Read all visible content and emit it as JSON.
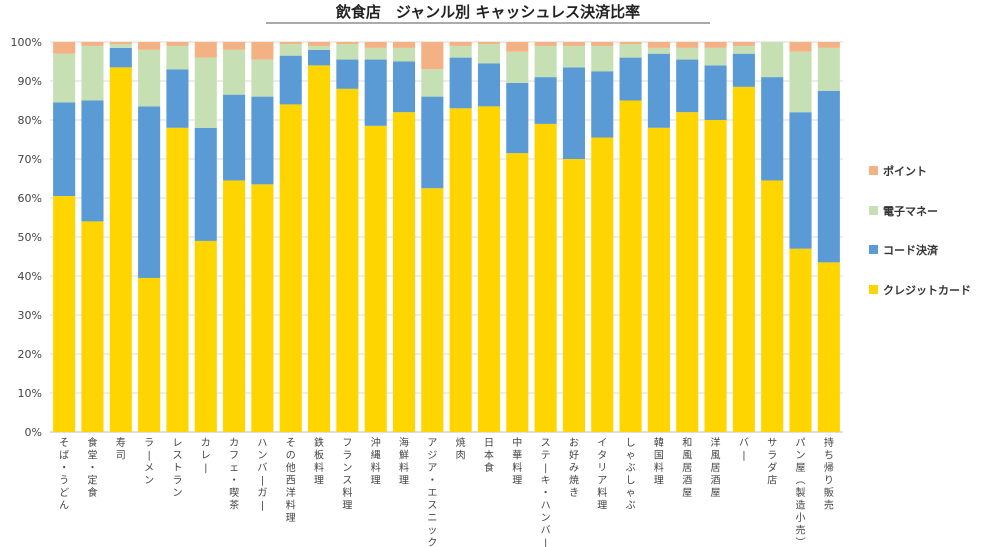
{
  "chart_data": {
    "type": "bar",
    "stacked": true,
    "title": "飲食店　ジャンル別 キャッシュレス決済比率",
    "ylim": [
      0,
      100
    ],
    "yticks": [
      "0%",
      "10%",
      "20%",
      "30%",
      "40%",
      "50%",
      "60%",
      "70%",
      "80%",
      "90%",
      "100%"
    ],
    "legend_position": "right",
    "categories": [
      "そば・うどん",
      "食堂・定食",
      "寿司",
      "ラーメン",
      "レストラン",
      "カレー",
      "カフェ・喫茶",
      "ハンバーガー",
      "その他西洋料理",
      "鉄板料理",
      "フランス料理",
      "沖縄料理",
      "海鮮料理",
      "アジア・エスニック",
      "焼肉",
      "日本食",
      "中華料理",
      "ステーキ・ハンバーグ",
      "お好み焼き",
      "イタリア料理",
      "しゃぶしゃぶ",
      "韓国料理",
      "和風居酒屋",
      "洋風居酒屋",
      "バー",
      "サラダ店",
      "パン屋(製造小売)",
      "持ち帰り販売"
    ],
    "series": [
      {
        "name": "クレジットカード",
        "color": "#FFD500",
        "values": [
          60.5,
          54,
          93.5,
          39.5,
          78,
          49,
          64.5,
          63.5,
          84,
          94,
          88,
          78.5,
          82,
          62.5,
          83,
          83.5,
          71.5,
          79,
          70,
          75.5,
          85,
          78,
          82,
          80,
          88.5,
          64.5,
          47,
          43.5
        ]
      },
      {
        "name": "コード決済",
        "color": "#5B9BD5",
        "values": [
          24,
          31,
          5,
          44,
          15,
          29,
          22,
          22.5,
          12.5,
          4,
          7.5,
          17,
          13,
          23.5,
          13,
          11,
          18,
          12,
          23.5,
          17,
          11,
          19,
          13.5,
          14,
          8.5,
          26.5,
          35,
          44
        ]
      },
      {
        "name": "電子マネー",
        "color": "#C6E0B4",
        "values": [
          12.5,
          14,
          1,
          14.5,
          6,
          18,
          11.5,
          9.5,
          3,
          1,
          4,
          3,
          3.5,
          7,
          3,
          5,
          8,
          8,
          5.5,
          6.5,
          3.5,
          1.5,
          3,
          4.5,
          2,
          9,
          15.5,
          11
        ]
      },
      {
        "name": "ポイント",
        "color": "#F4B183",
        "values": [
          3,
          1,
          0.5,
          2,
          1,
          4,
          2,
          4.5,
          0.5,
          1,
          0.5,
          1.5,
          1.5,
          7,
          1,
          0.5,
          2.5,
          1,
          1,
          1,
          0.5,
          1.5,
          1.5,
          1.5,
          1,
          0,
          2.5,
          1.5
        ]
      }
    ],
    "legend_order": [
      "ポイント",
      "電子マネー",
      "コード決済",
      "クレジットカード"
    ]
  }
}
